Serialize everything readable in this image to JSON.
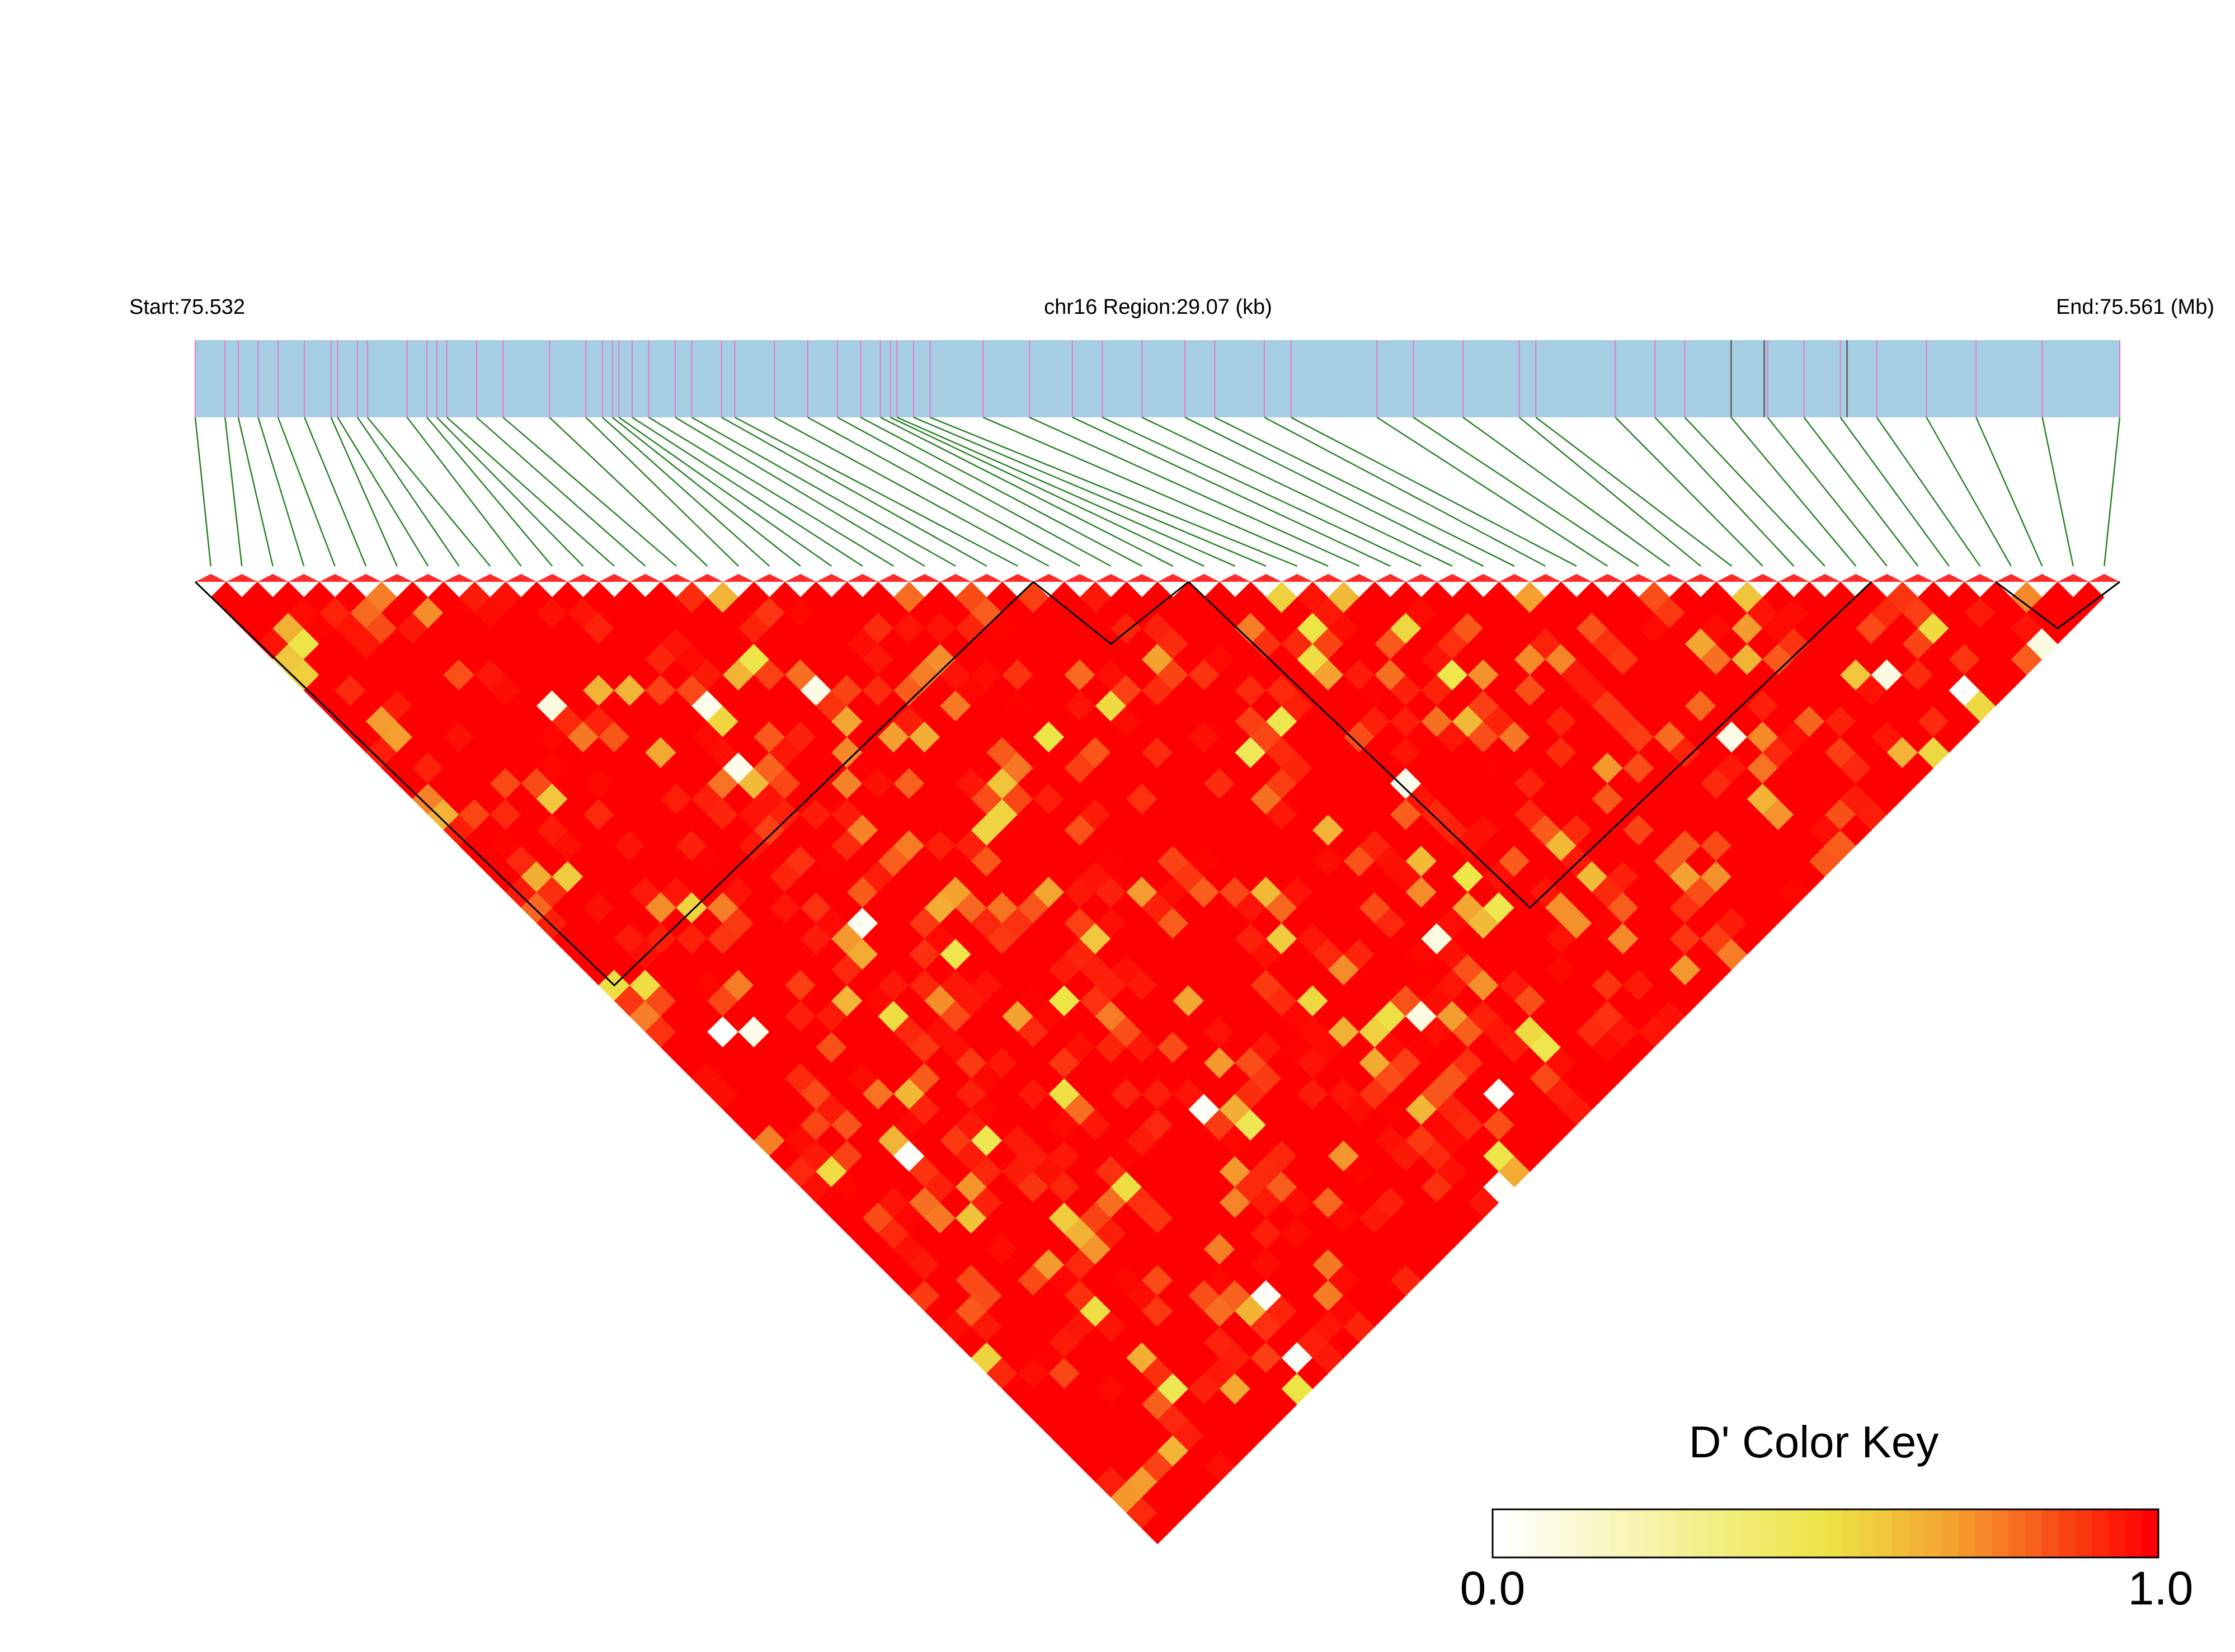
{
  "chart_data": {
    "type": "heatmap",
    "subtype": "linkage-disequilibrium",
    "labels": {
      "start": "Start:75.532",
      "region": "chr16 Region:29.07 (kb)",
      "end": "End:75.561 (Mb)"
    },
    "region_start_mb": 75.532,
    "region_end_mb": 75.561,
    "snp_count": 62,
    "snp_positions_kb": [
      0.0,
      0.45,
      0.65,
      0.95,
      1.25,
      1.65,
      2.05,
      2.15,
      2.45,
      2.6,
      3.2,
      3.5,
      3.65,
      3.8,
      4.25,
      4.65,
      5.35,
      5.9,
      6.15,
      6.3,
      6.4,
      6.6,
      6.85,
      7.25,
      7.5,
      7.95,
      8.15,
      8.75,
      9.25,
      9.7,
      10.05,
      10.35,
      10.5,
      10.6,
      10.85,
      11.1,
      11.9,
      12.6,
      13.25,
      13.7,
      14.3,
      14.95,
      15.4,
      16.15,
      16.55,
      17.85,
      18.4,
      19.15,
      20.0,
      20.25,
      21.45,
      22.05,
      22.5,
      23.2,
      23.75,
      24.3,
      24.85,
      25.4,
      26.15,
      26.9,
      27.9,
      29.07
    ],
    "gray_marks_kb": [
      23.2,
      23.7,
      24.95
    ],
    "d_prime_matrix_note": "62x62 pairwise D' values, mostly 0.80-1.00 with scattered lower values",
    "blocks": [
      {
        "from_snp": 1,
        "to_snp": 27
      },
      {
        "from_snp": 28,
        "to_snp": 32
      },
      {
        "from_snp": 33,
        "to_snp": 54
      },
      {
        "from_snp": 59,
        "to_snp": 62
      }
    ],
    "color_key": {
      "title": "D' Color Key",
      "min_label": "0.0",
      "max_label": "1.0",
      "range": [
        0.0,
        1.0
      ],
      "stops": [
        "#ffffff",
        "#f0e040",
        "#f4a030",
        "#ff0000"
      ]
    },
    "colors": {
      "gene_bar": "#a6cee3",
      "snp_tick": "#e07fd0",
      "connector": "#1f7f1f",
      "ld_high": "#ff0000"
    }
  }
}
